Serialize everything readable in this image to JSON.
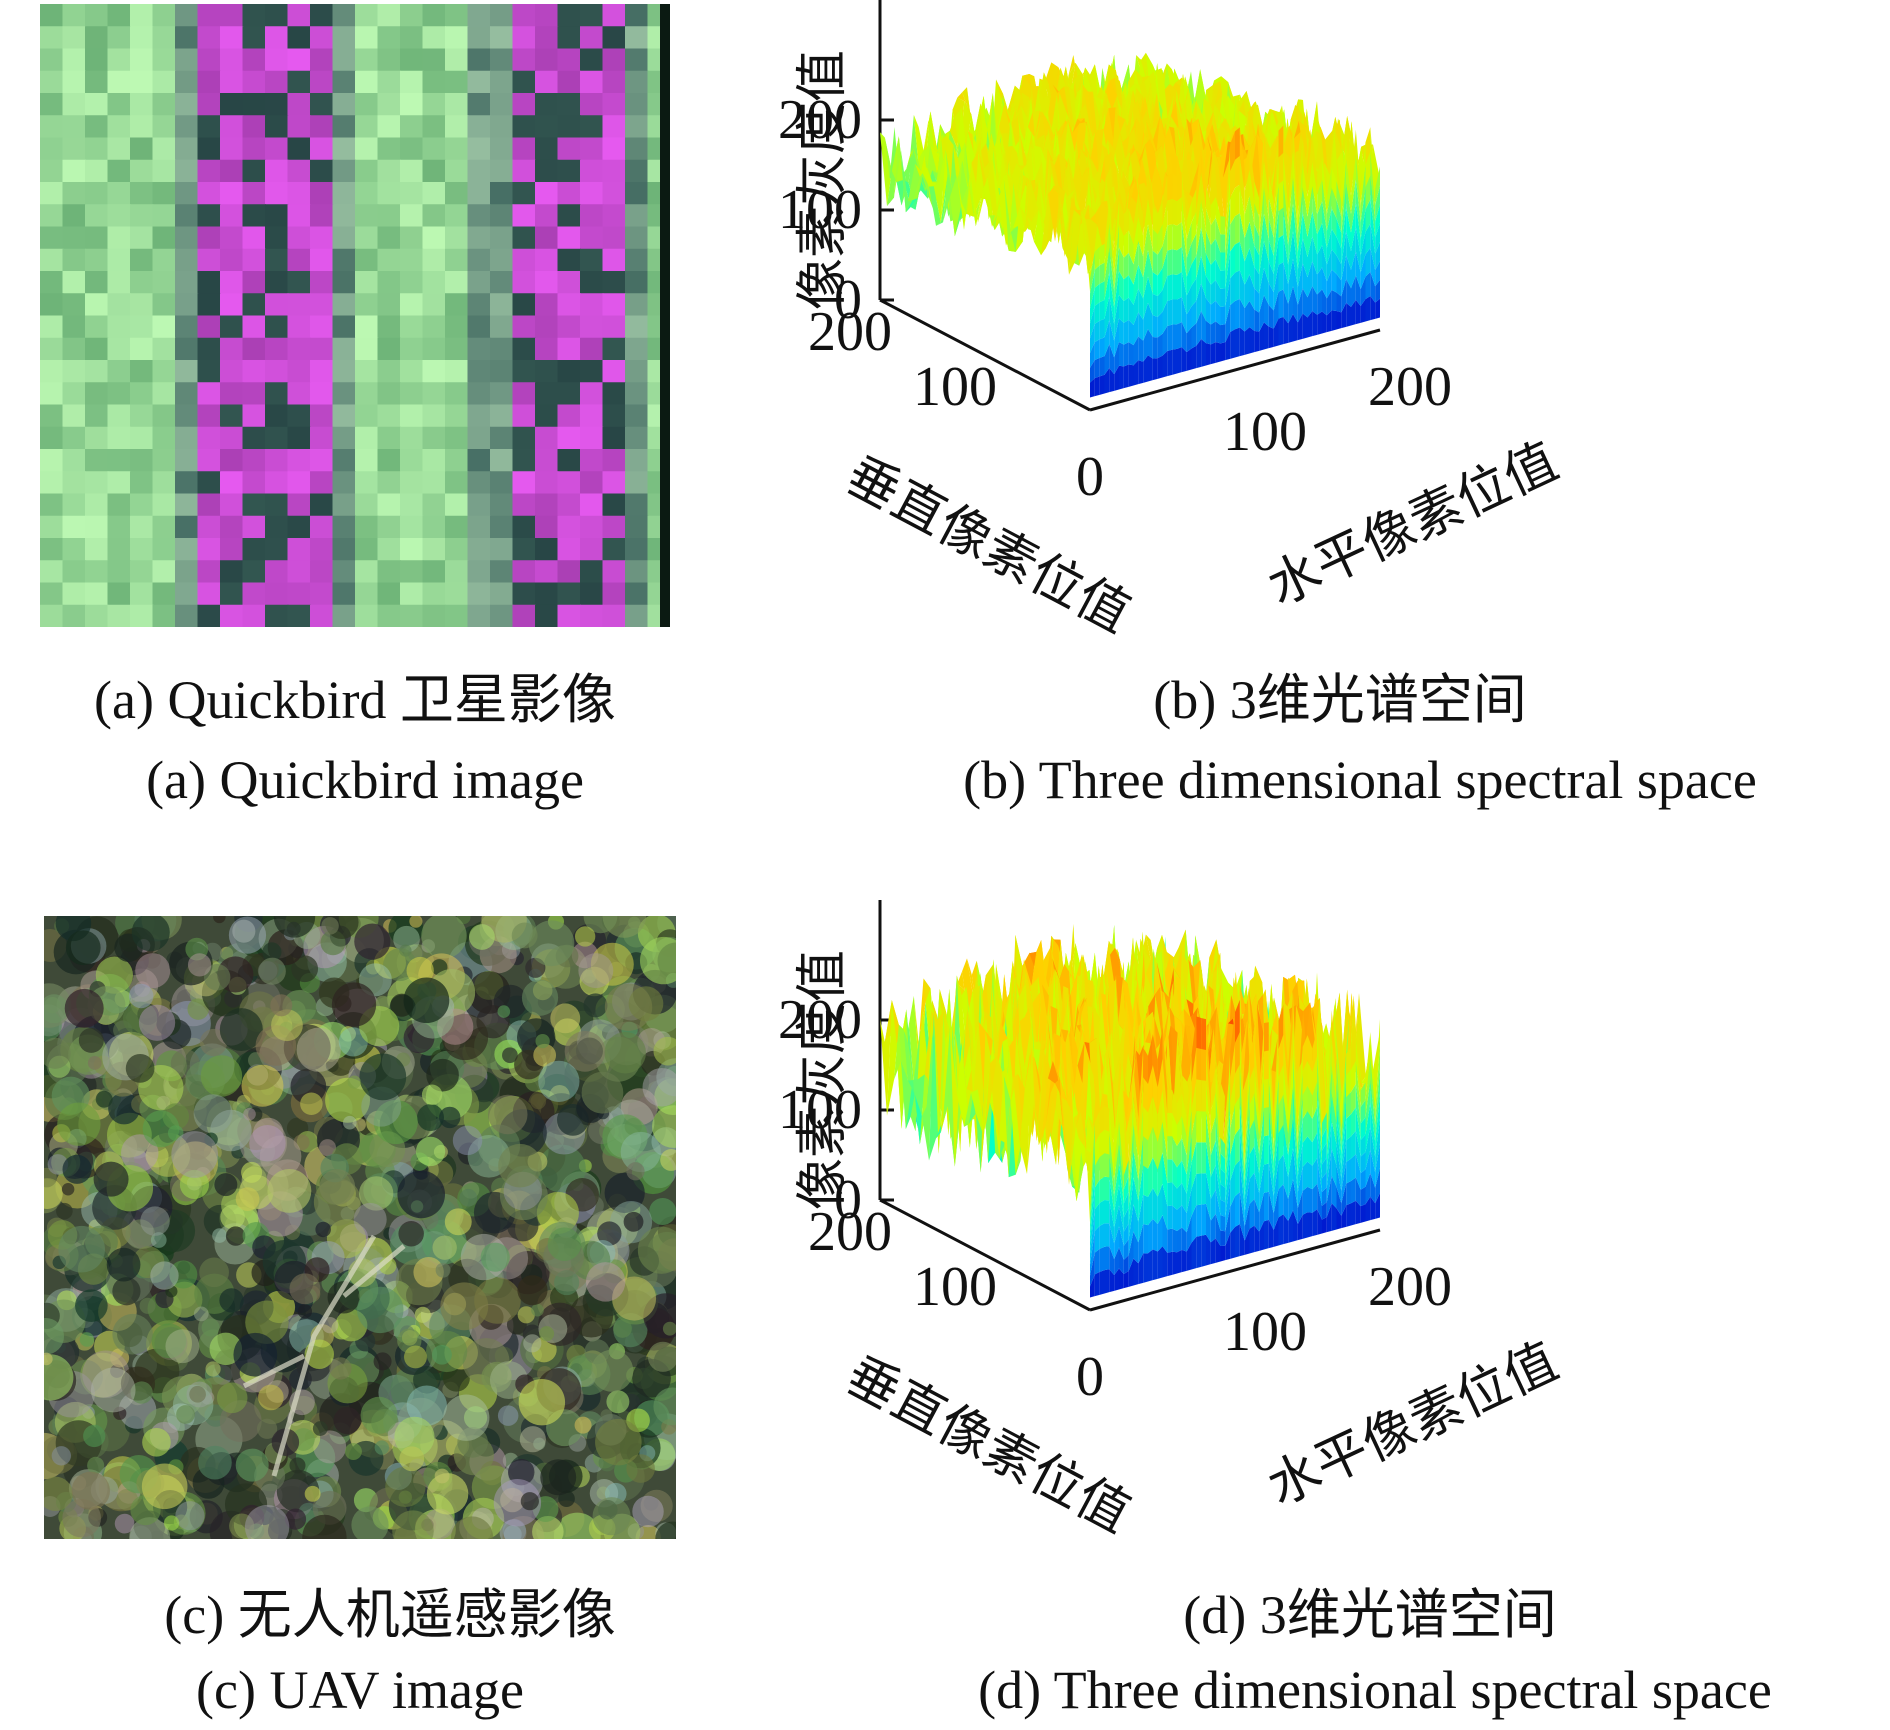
{
  "panels": {
    "a": {
      "caption_cn": "(a) Quickbird 卫星影像",
      "caption_en": "(a) Quickbird image",
      "image_kind": "satellite-image"
    },
    "b": {
      "caption_cn": "(b) 3维光谱空间",
      "caption_en": "(b) Three dimensional spectral space"
    },
    "c": {
      "caption_cn": "(c) 无人机遥感影像",
      "caption_en": "(c) UAV image",
      "image_kind": "uav-image"
    },
    "d": {
      "caption_cn": "(d) 3维光谱空间",
      "caption_en": "(d) Three dimensional spectral space"
    }
  },
  "chart_data": [
    {
      "type": "surface3d",
      "panel": "b",
      "zlabel": "像素灰度值",
      "ylabel": "垂直像素位值",
      "xlabel": "水平像素位值",
      "z_ticks": [
        "0",
        "100",
        "200"
      ],
      "y_ticks": [
        "200",
        "100"
      ],
      "x_ticks": [
        "0",
        "100",
        "200"
      ],
      "zlim": [
        0,
        250
      ],
      "colormap": [
        "#0000c8",
        "#00aaff",
        "#00ffcc",
        "#ccff00",
        "#ffd000",
        "#ff6000",
        "#e00000"
      ]
    },
    {
      "type": "surface3d",
      "panel": "d",
      "zlabel": "像素灰度值",
      "ylabel": "垂直像素位值",
      "xlabel": "水平像素位值",
      "z_ticks": [
        "0",
        "100",
        "200"
      ],
      "y_ticks": [
        "200",
        "100"
      ],
      "x_ticks": [
        "0",
        "100",
        "200"
      ],
      "zlim": [
        0,
        250
      ],
      "colormap": [
        "#0000c8",
        "#00aaff",
        "#00ffcc",
        "#ccff00",
        "#ffd000",
        "#ff6000",
        "#e00000"
      ]
    }
  ]
}
